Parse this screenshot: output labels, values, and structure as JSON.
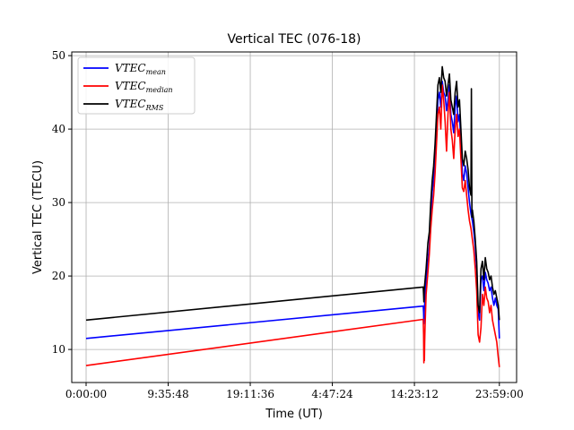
{
  "chart_data": {
    "type": "line",
    "title": "Vertical TEC (076-18)",
    "xlabel": "Time (UT)",
    "ylabel": "Vertical TEC (TECU)",
    "x_unit": "seconds_of_day",
    "xlim": [
      -3000,
      89940
    ],
    "ylim": [
      5.5,
      50.5
    ],
    "grid": true,
    "legend_position": "top-left",
    "x_ticks": [
      {
        "value": 0,
        "label": "0:00:00"
      },
      {
        "value": 17148,
        "label": "9:35:48"
      },
      {
        "value": 34296,
        "label": "19:11:36"
      },
      {
        "value": 51444,
        "label": "4:47:24"
      },
      {
        "value": 68592,
        "label": "14:23:12"
      },
      {
        "value": 86340,
        "label": "23:59:00"
      }
    ],
    "y_ticks": [
      10,
      20,
      30,
      40,
      50
    ],
    "series": [
      {
        "name": "VTEC",
        "subscript": "mean",
        "color": "#0000ff",
        "x": [
          0,
          70440,
          70500,
          70560,
          70620,
          71040,
          71400,
          71700,
          72000,
          72300,
          72600,
          72900,
          73200,
          73500,
          73800,
          74100,
          74400,
          74700,
          75000,
          75300,
          75600,
          75900,
          76200,
          76500,
          76800,
          77100,
          77400,
          77700,
          78000,
          78300,
          78600,
          78900,
          79200,
          79500,
          79800,
          80100,
          80400,
          80700,
          81000,
          81300,
          81600,
          81900,
          82200,
          82500,
          82800,
          83100,
          83400,
          83700,
          84000,
          84300,
          84600,
          84900,
          85200,
          85500,
          85800,
          86100,
          86340
        ],
        "y": [
          11.5,
          15.9,
          15.0,
          13.5,
          15.0,
          19.5,
          22.0,
          24.0,
          28.0,
          31.5,
          33.0,
          36.0,
          40.0,
          44.0,
          45.0,
          43.0,
          46.5,
          45.0,
          44.5,
          42.5,
          44.0,
          46.0,
          42.0,
          41.0,
          39.5,
          43.0,
          44.5,
          41.0,
          42.0,
          38.0,
          34.0,
          33.0,
          35.0,
          34.0,
          32.0,
          30.0,
          28.5,
          27.5,
          26.0,
          24.0,
          21.0,
          15.0,
          14.0,
          19.5,
          20.0,
          18.0,
          20.5,
          19.5,
          19.0,
          18.0,
          18.5,
          17.0,
          16.0,
          17.0,
          16.0,
          15.5,
          11.5
        ]
      },
      {
        "name": "VTEC",
        "subscript": "median",
        "color": "#ff0000",
        "x": [
          0,
          70440,
          70500,
          70560,
          70620,
          70680,
          70740,
          70800,
          71040,
          71400,
          71700,
          72000,
          72300,
          72600,
          72900,
          73200,
          73500,
          73800,
          74100,
          74400,
          74700,
          75000,
          75300,
          75600,
          75900,
          76200,
          76500,
          76800,
          77100,
          77400,
          77700,
          78000,
          78300,
          78600,
          78900,
          79200,
          79500,
          79800,
          80100,
          80400,
          80700,
          81000,
          81300,
          81600,
          81900,
          82200,
          82500,
          82800,
          83100,
          83400,
          83700,
          84000,
          84300,
          84600,
          84900,
          85200,
          85500,
          85800,
          86100,
          86340
        ],
        "y": [
          7.8,
          14.1,
          12.0,
          8.2,
          10.0,
          8.5,
          11.0,
          13.0,
          17.5,
          20.5,
          23.0,
          26.5,
          29.0,
          31.0,
          34.0,
          38.0,
          42.0,
          43.0,
          40.0,
          46.0,
          44.0,
          41.0,
          37.0,
          42.0,
          45.0,
          40.0,
          38.5,
          36.0,
          40.0,
          42.0,
          39.0,
          40.0,
          36.0,
          32.0,
          31.5,
          33.0,
          31.0,
          29.0,
          27.5,
          26.5,
          25.0,
          23.5,
          21.0,
          18.0,
          12.0,
          11.0,
          13.0,
          17.5,
          16.0,
          18.5,
          17.0,
          16.5,
          15.0,
          16.0,
          14.0,
          13.0,
          12.0,
          11.0,
          9.0,
          7.6
        ]
      },
      {
        "name": "VTEC",
        "subscript": "RMS",
        "color": "#000000",
        "x": [
          0,
          70440,
          70500,
          70560,
          70620,
          71040,
          71400,
          71700,
          72000,
          72300,
          72600,
          72900,
          73200,
          73500,
          73800,
          74100,
          74400,
          74700,
          75000,
          75300,
          75600,
          75900,
          76200,
          76500,
          76800,
          77100,
          77400,
          77700,
          78000,
          78300,
          78600,
          78900,
          79200,
          79500,
          79800,
          80100,
          80400,
          80500,
          80600,
          80700,
          81000,
          81300,
          81600,
          81900,
          82200,
          82500,
          82800,
          83100,
          83400,
          83700,
          84000,
          84300,
          84600,
          84900,
          85200,
          85500,
          85800,
          86100,
          86340
        ],
        "y": [
          14.0,
          18.5,
          17.5,
          16.5,
          18.0,
          21.0,
          24.5,
          26.0,
          30.0,
          33.0,
          35.0,
          38.0,
          42.0,
          46.0,
          47.0,
          45.0,
          48.5,
          47.0,
          46.5,
          44.5,
          46.0,
          47.5,
          44.0,
          43.0,
          42.0,
          45.0,
          46.5,
          43.0,
          44.0,
          40.0,
          36.0,
          35.0,
          37.0,
          36.0,
          34.5,
          32.0,
          31.0,
          45.5,
          28.0,
          29.0,
          27.5,
          25.0,
          22.0,
          16.0,
          15.0,
          21.0,
          22.0,
          19.5,
          22.5,
          21.0,
          20.5,
          19.5,
          20.0,
          18.5,
          17.5,
          18.0,
          17.0,
          16.0,
          14.0
        ]
      }
    ]
  }
}
